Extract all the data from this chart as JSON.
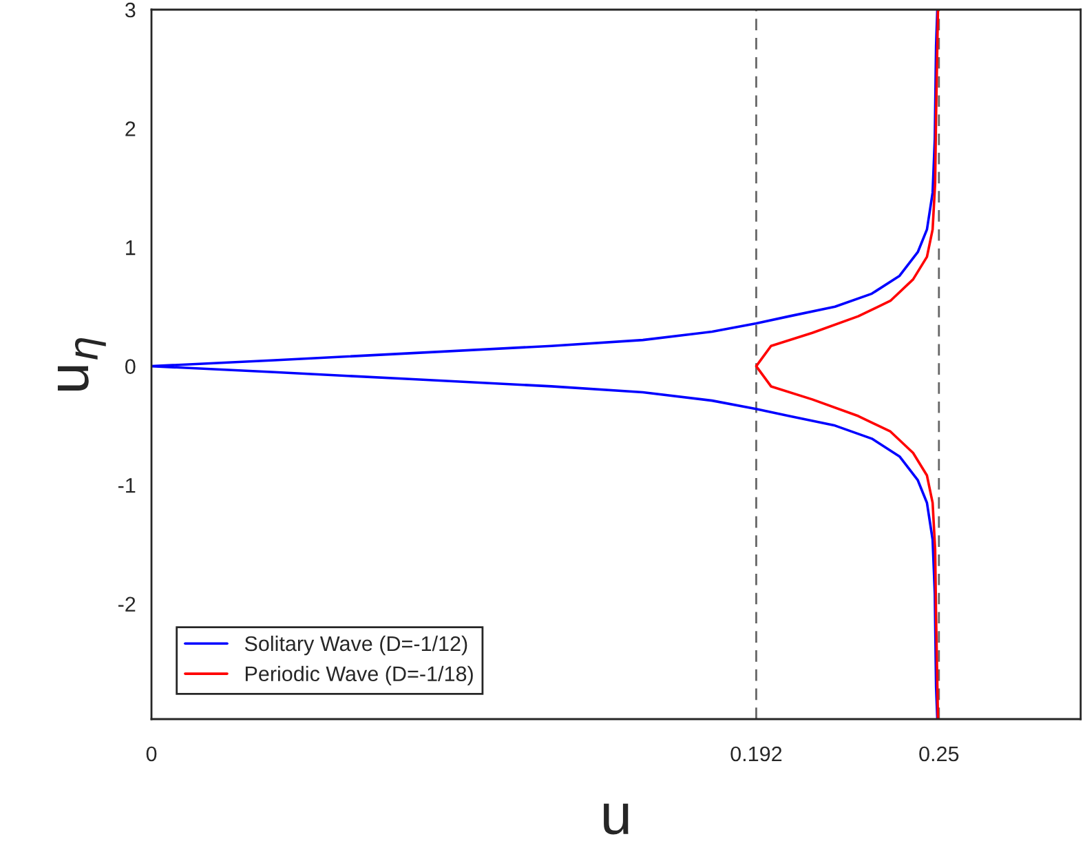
{
  "chart_data": {
    "type": "line",
    "xlabel": "u",
    "ylabel": "u$_{η}$",
    "xlim": [
      0,
      0.295
    ],
    "ylim": [
      -2.97,
      3
    ],
    "xticks": [
      0,
      0.192,
      0.25
    ],
    "yticks": [
      -2,
      -1,
      0,
      1,
      2,
      3
    ],
    "grid": false,
    "legend": "bottom left",
    "line_style": "solid",
    "marker": "none",
    "ref_lines": [
      {
        "axis": "x",
        "value": 0.192,
        "color": "#666666",
        "line_style": "dashed"
      },
      {
        "axis": "x",
        "value": 0.25,
        "color": "#666666",
        "line_style": "dashed"
      }
    ],
    "series": [
      {
        "name": "Solitary Wave (D=-1/12)",
        "color": "#0000ff",
        "x": [
          0.2495,
          0.2491,
          0.2487,
          0.248,
          0.2462,
          0.2433,
          0.2375,
          0.2287,
          0.217,
          0.2025,
          0.192,
          0.178,
          0.156,
          0.127,
          0.083,
          0.039,
          0,
          0.039,
          0.083,
          0.127,
          0.156,
          0.178,
          0.192,
          0.2025,
          0.217,
          0.2287,
          0.2375,
          0.2433,
          0.2462,
          0.248,
          0.2487,
          0.2491,
          0.2495
        ],
        "values": [
          3,
          2.7,
          1.92,
          1.46,
          1.15,
          0.96,
          0.76,
          0.61,
          0.5,
          0.42,
          0.36,
          0.29,
          0.22,
          0.17,
          0.11,
          0.05,
          0,
          -0.05,
          -0.11,
          -0.17,
          -0.22,
          -0.29,
          -0.36,
          -0.42,
          -0.5,
          -0.61,
          -0.76,
          -0.96,
          -1.15,
          -1.46,
          -1.92,
          -2.7,
          -2.97
        ]
      },
      {
        "name": "Periodic Wave (D=-1/18)",
        "color": "#ff0000",
        "x": [
          0.2497,
          0.2491,
          0.2488,
          0.248,
          0.2462,
          0.2418,
          0.2346,
          0.2244,
          0.2098,
          0.1967,
          0.192,
          0.1967,
          0.2098,
          0.2244,
          0.2346,
          0.2418,
          0.2462,
          0.248,
          0.2488,
          0.2491,
          0.2497
        ],
        "values": [
          3,
          2.12,
          1.54,
          1.15,
          0.92,
          0.73,
          0.55,
          0.42,
          0.28,
          0.17,
          0,
          -0.17,
          -0.28,
          -0.42,
          -0.55,
          -0.73,
          -0.92,
          -1.15,
          -1.54,
          -2.12,
          -2.97
        ]
      }
    ]
  }
}
